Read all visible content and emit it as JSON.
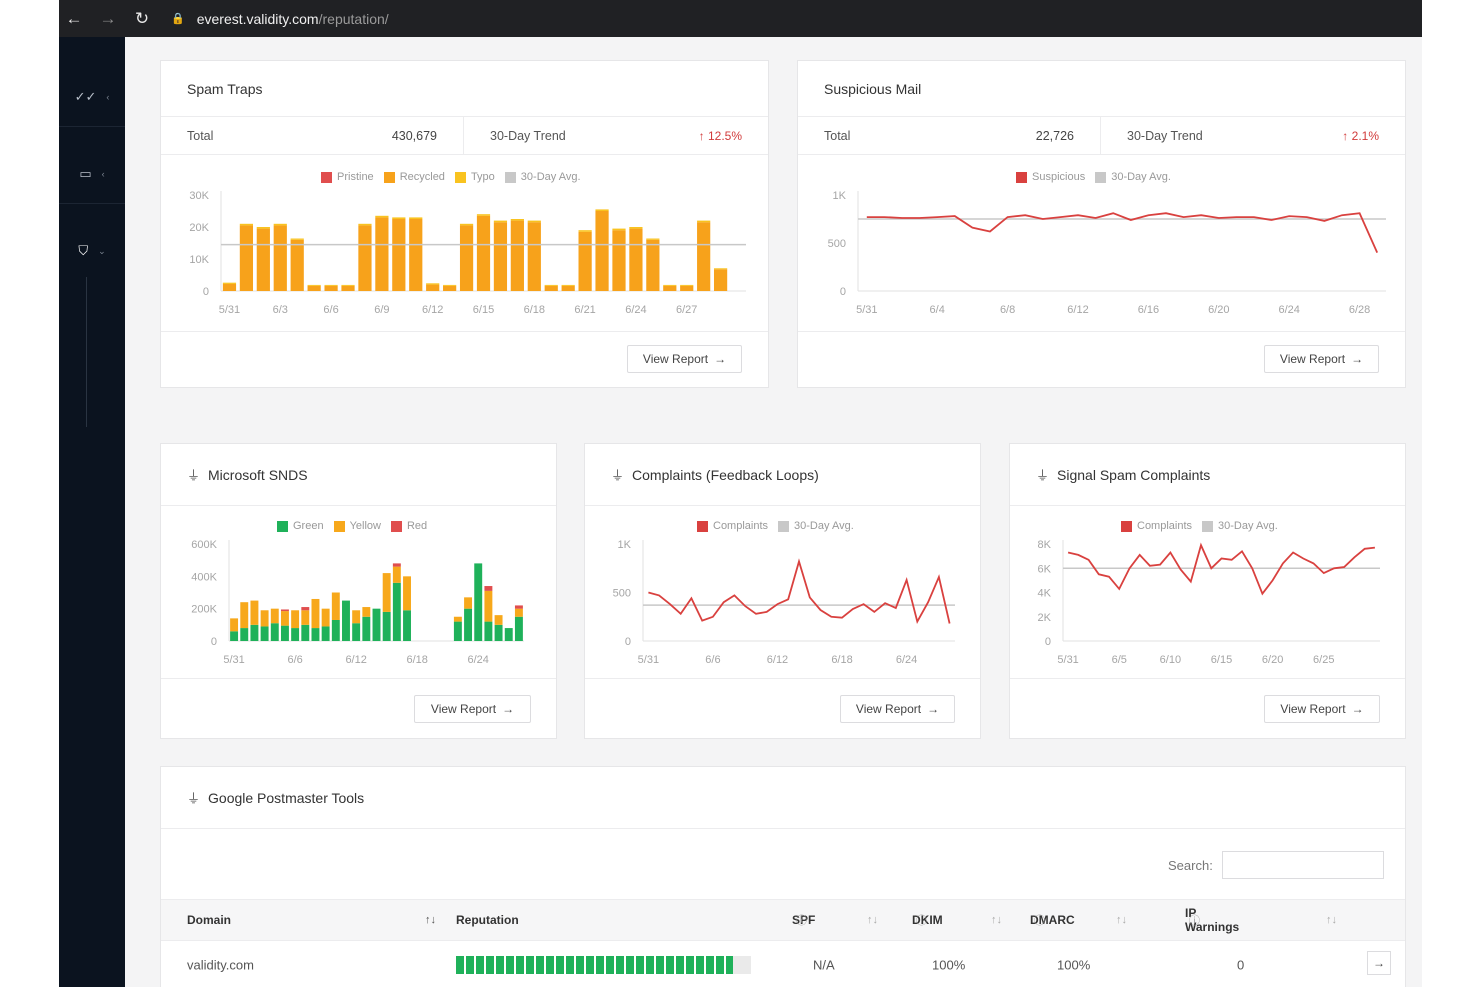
{
  "browser": {
    "url_host": "everest.validity.com",
    "url_path": "/reputation/"
  },
  "colors": {
    "pristine": "#e04e4e",
    "recycled": "#f7a21b",
    "typo": "#f9c31f",
    "avg": "#c8c8c8",
    "line": "#d9413f",
    "green": "#1fb15a",
    "yellow": "#f7a81b",
    "red": "#e04e4e"
  },
  "icons": {
    "back": "arrow-left-icon",
    "forward": "arrow-right-icon",
    "reload": "reload-icon",
    "lock": "lock-icon",
    "nav1": "check-double-icon",
    "nav2": "inbox-icon",
    "nav3": "shield-icon",
    "plug": "plug-icon"
  },
  "spam_traps": {
    "title": "Spam Traps",
    "total_label": "Total",
    "total_value": "430,679",
    "trend_label": "30-Day Trend",
    "trend_value": "12.5%",
    "view_report": "View Report",
    "legend": [
      "Pristine",
      "Recycled",
      "Typo",
      "30-Day Avg."
    ]
  },
  "suspicious_mail": {
    "title": "Suspicious Mail",
    "total_label": "Total",
    "total_value": "22,726",
    "trend_label": "30-Day Trend",
    "trend_value": "2.1%",
    "view_report": "View Report",
    "legend": [
      "Suspicious",
      "30-Day Avg."
    ]
  },
  "microsoft_snds": {
    "title": "Microsoft SNDS",
    "view_report": "View Report",
    "legend": [
      "Green",
      "Yellow",
      "Red"
    ]
  },
  "complaints": {
    "title": "Complaints (Feedback Loops)",
    "view_report": "View Report",
    "legend": [
      "Complaints",
      "30-Day Avg."
    ]
  },
  "signal_spam": {
    "title": "Signal Spam Complaints",
    "view_report": "View Report",
    "legend": [
      "Complaints",
      "30-Day Avg."
    ]
  },
  "postmaster": {
    "title": "Google Postmaster Tools",
    "search_label": "Search:",
    "columns": [
      "Domain",
      "Reputation",
      "SPF",
      "DKIM",
      "DMARC",
      "IP Warnings"
    ],
    "rows": [
      {
        "domain": "validity.com",
        "reputation": 0.94,
        "spf": "N/A",
        "dkim": "100%",
        "dmarc": "100%",
        "ip_warnings": "0"
      }
    ]
  },
  "chart_data": [
    {
      "type": "bar",
      "id": "spam_traps",
      "stacked": true,
      "categories": [
        "5/31",
        "6/1",
        "6/2",
        "6/3",
        "6/4",
        "6/5",
        "6/6",
        "6/7",
        "6/8",
        "6/9",
        "6/10",
        "6/11",
        "6/12",
        "6/13",
        "6/14",
        "6/15",
        "6/16",
        "6/17",
        "6/18",
        "6/19",
        "6/20",
        "6/21",
        "6/22",
        "6/23",
        "6/24",
        "6/25",
        "6/26",
        "6/27",
        "6/28",
        "6/29",
        "6/30"
      ],
      "x_tick_labels": [
        "5/31",
        "6/3",
        "6/6",
        "6/9",
        "6/12",
        "6/15",
        "6/18",
        "6/21",
        "6/24",
        "6/27"
      ],
      "y_ticks": [
        "30K",
        "20K",
        "10K",
        "0"
      ],
      "ylim": [
        0,
        30000
      ],
      "series": [
        {
          "name": "Pristine",
          "values": [
            0,
            0,
            0,
            0,
            0,
            0,
            0,
            0,
            0,
            0,
            0,
            0,
            0,
            0,
            0,
            0,
            0,
            0,
            0,
            0,
            0,
            0,
            0,
            0,
            0,
            0,
            0,
            0,
            0,
            0,
            0
          ]
        },
        {
          "name": "Recycled",
          "values": [
            2200,
            20500,
            19500,
            20500,
            16000,
            1600,
            1600,
            1600,
            20500,
            23000,
            22500,
            22500,
            2000,
            1600,
            20500,
            23500,
            21500,
            22000,
            21500,
            1600,
            1600,
            18500,
            25000,
            19000,
            19500,
            16000,
            1600,
            1600,
            21500,
            6800,
            0
          ]
        },
        {
          "name": "Typo",
          "values": [
            400,
            500,
            500,
            500,
            400,
            300,
            300,
            300,
            500,
            500,
            500,
            500,
            400,
            300,
            500,
            500,
            500,
            500,
            500,
            300,
            300,
            500,
            500,
            500,
            500,
            400,
            300,
            300,
            500,
            300,
            0
          ]
        }
      ],
      "avg": 14500
    },
    {
      "type": "line",
      "id": "suspicious_mail",
      "x": [
        "5/31",
        "6/1",
        "6/2",
        "6/3",
        "6/4",
        "6/5",
        "6/6",
        "6/7",
        "6/8",
        "6/9",
        "6/10",
        "6/11",
        "6/12",
        "6/13",
        "6/14",
        "6/15",
        "6/16",
        "6/17",
        "6/18",
        "6/19",
        "6/20",
        "6/21",
        "6/22",
        "6/23",
        "6/24",
        "6/25",
        "6/26",
        "6/27",
        "6/28",
        "6/29"
      ],
      "x_tick_labels": [
        "5/31",
        "6/4",
        "6/8",
        "6/12",
        "6/16",
        "6/20",
        "6/24",
        "6/28"
      ],
      "y_ticks": [
        "1K",
        "500",
        "0"
      ],
      "ylim": [
        0,
        1000
      ],
      "series": [
        {
          "name": "Suspicious",
          "values": [
            770,
            770,
            760,
            760,
            770,
            780,
            660,
            620,
            770,
            790,
            750,
            770,
            790,
            760,
            810,
            740,
            790,
            810,
            770,
            790,
            760,
            770,
            770,
            740,
            780,
            770,
            730,
            790,
            810,
            400
          ]
        }
      ],
      "avg": 750
    },
    {
      "type": "bar",
      "id": "microsoft_snds",
      "stacked": true,
      "categories": [
        "5/31",
        "6/1",
        "6/2",
        "6/3",
        "6/4",
        "6/5",
        "6/6",
        "6/7",
        "6/8",
        "6/9",
        "6/10",
        "6/11",
        "6/12",
        "6/13",
        "6/14",
        "6/15",
        "6/16",
        "6/17",
        "6/18",
        "6/19",
        "6/20",
        "6/21",
        "6/22",
        "6/23",
        "6/24",
        "6/25",
        "6/26",
        "6/27",
        "6/28"
      ],
      "x_tick_labels": [
        "5/31",
        "6/6",
        "6/12",
        "6/18",
        "6/24"
      ],
      "y_ticks": [
        "600K",
        "400K",
        "200K",
        "0"
      ],
      "ylim": [
        0,
        600000
      ],
      "series": [
        {
          "name": "Green",
          "values": [
            60000,
            80000,
            100000,
            90000,
            110000,
            95000,
            80000,
            100000,
            80000,
            90000,
            130000,
            250000,
            110000,
            150000,
            200000,
            180000,
            360000,
            190000,
            0,
            0,
            0,
            0,
            120000,
            200000,
            480000,
            120000,
            100000,
            80000,
            150000
          ]
        },
        {
          "name": "Yellow",
          "values": [
            80000,
            160000,
            150000,
            100000,
            90000,
            90000,
            110000,
            90000,
            180000,
            110000,
            170000,
            0,
            80000,
            60000,
            0,
            240000,
            100000,
            210000,
            0,
            0,
            0,
            0,
            30000,
            70000,
            0,
            190000,
            60000,
            0,
            50000
          ]
        },
        {
          "name": "Red",
          "values": [
            0,
            0,
            0,
            0,
            0,
            10000,
            0,
            20000,
            0,
            0,
            0,
            0,
            0,
            0,
            0,
            0,
            20000,
            0,
            0,
            0,
            0,
            0,
            0,
            0,
            0,
            30000,
            0,
            0,
            20000
          ]
        }
      ]
    },
    {
      "type": "line",
      "id": "complaints",
      "x": [
        "5/31",
        "6/1",
        "6/2",
        "6/3",
        "6/4",
        "6/5",
        "6/6",
        "6/7",
        "6/8",
        "6/9",
        "6/10",
        "6/11",
        "6/12",
        "6/13",
        "6/14",
        "6/15",
        "6/16",
        "6/17",
        "6/18",
        "6/19",
        "6/20",
        "6/21",
        "6/22",
        "6/23",
        "6/24",
        "6/25",
        "6/26",
        "6/27",
        "6/28"
      ],
      "x_tick_labels": [
        "5/31",
        "6/6",
        "6/12",
        "6/18",
        "6/24"
      ],
      "y_ticks": [
        "1K",
        "500",
        "0"
      ],
      "ylim": [
        0,
        1000
      ],
      "series": [
        {
          "name": "Complaints",
          "values": [
            500,
            470,
            380,
            280,
            440,
            210,
            250,
            400,
            470,
            360,
            280,
            300,
            380,
            430,
            820,
            450,
            320,
            250,
            240,
            330,
            380,
            300,
            390,
            340,
            630,
            200,
            400,
            660,
            180
          ]
        }
      ],
      "avg": 370
    },
    {
      "type": "line",
      "id": "signal_spam",
      "x": [
        "5/31",
        "6/1",
        "6/2",
        "6/3",
        "6/4",
        "6/5",
        "6/6",
        "6/7",
        "6/8",
        "6/9",
        "6/10",
        "6/11",
        "6/12",
        "6/13",
        "6/14",
        "6/15",
        "6/16",
        "6/17",
        "6/18",
        "6/19",
        "6/20",
        "6/21",
        "6/22",
        "6/23",
        "6/24",
        "6/25",
        "6/26",
        "6/27",
        "6/28",
        "6/29",
        "6/30"
      ],
      "x_tick_labels": [
        "5/31",
        "6/5",
        "6/10",
        "6/15",
        "6/20",
        "6/25"
      ],
      "y_ticks": [
        "8K",
        "6K",
        "4K",
        "2K",
        "0"
      ],
      "ylim": [
        0,
        8000
      ],
      "series": [
        {
          "name": "Complaints",
          "values": [
            7300,
            7100,
            6700,
            5500,
            5300,
            4300,
            6000,
            7100,
            6200,
            6300,
            7300,
            5900,
            4900,
            7900,
            6000,
            6800,
            6700,
            7400,
            6000,
            3900,
            5000,
            6400,
            7300,
            6800,
            6400,
            5600,
            6000,
            6100,
            6900,
            7600,
            7700
          ]
        }
      ],
      "avg": 6000
    }
  ]
}
